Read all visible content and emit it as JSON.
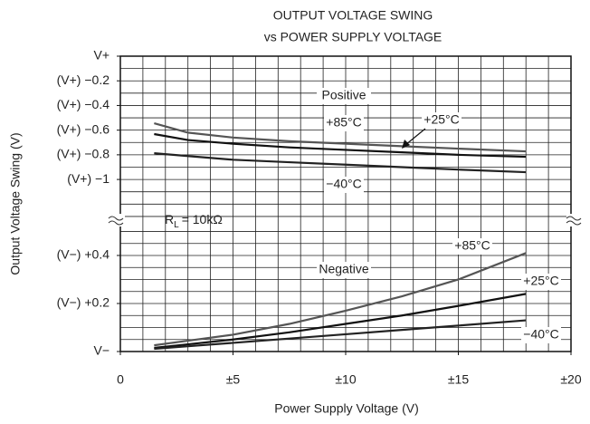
{
  "chart_data": [
    {
      "type": "line",
      "title": "OUTPUT VOLTAGE SWING",
      "subtitle": "vs POWER SUPPLY VOLTAGE",
      "ylabel": "Output Voltage Swing (V)",
      "annotations": [
        "Positive",
        "R",
        "L",
        "= 10kΩ"
      ],
      "x": [
        1.5,
        3,
        5,
        7.5,
        10,
        12.5,
        15,
        18
      ],
      "xlim": [
        0,
        20
      ],
      "ylim": [
        -1.33,
        0
      ],
      "yticks": [
        {
          "value": 0,
          "label": "V+"
        },
        {
          "value": -0.2,
          "label": "(V+) −0.2"
        },
        {
          "value": -0.4,
          "label": "(V+) −0.4"
        },
        {
          "value": -0.6,
          "label": "(V+) −0.6"
        },
        {
          "value": -0.8,
          "label": "(V+) −0.8"
        },
        {
          "value": -1,
          "label": "(V+) −1"
        }
      ],
      "xgrid": [
        1,
        2,
        3,
        4,
        5,
        6,
        7,
        8,
        9,
        10,
        11,
        12,
        13,
        14,
        15,
        16,
        17,
        18,
        19
      ],
      "ygrid": [
        -0.1,
        -0.2,
        -0.3,
        -0.4,
        -0.5,
        -0.6,
        -0.7,
        -0.8,
        -0.9,
        -1,
        -1.1,
        -1.2,
        -1.3
      ],
      "grid": true,
      "series": [
        {
          "name": "+85°C",
          "color": "#555555",
          "values": [
            -0.544,
            -0.62,
            -0.66,
            -0.69,
            -0.71,
            -0.73,
            -0.75,
            -0.772
          ]
        },
        {
          "name": "+25°C",
          "color": "#111111",
          "values": [
            -0.632,
            -0.68,
            -0.71,
            -0.74,
            -0.76,
            -0.78,
            -0.8,
            -0.816
          ]
        },
        {
          "name": "−40°C",
          "color": "#222222",
          "values": [
            -0.787,
            -0.81,
            -0.84,
            -0.86,
            -0.88,
            -0.9,
            -0.92,
            -0.941
          ]
        }
      ]
    },
    {
      "type": "line",
      "xlabel": "Power Supply Voltage (V)",
      "annotations": [
        "Negative"
      ],
      "x": [
        1.5,
        3,
        5,
        7.5,
        10,
        12.5,
        15,
        18
      ],
      "xlim": [
        0,
        20
      ],
      "xticks": [
        0,
        {
          "value": 5,
          "label": "±5"
        },
        {
          "value": 10,
          "label": "±10"
        },
        {
          "value": 15,
          "label": "±15"
        },
        {
          "value": 20,
          "label": "±20"
        }
      ],
      "ylim": [
        0,
        0.547
      ],
      "yticks": [
        {
          "value": 0,
          "label": "V−"
        },
        {
          "value": 0.2,
          "label": "(V−) +0.2"
        },
        {
          "value": 0.4,
          "label": "(V−) +0.4"
        }
      ],
      "xgrid": [
        1,
        2,
        3,
        4,
        5,
        6,
        7,
        8,
        9,
        10,
        11,
        12,
        13,
        14,
        15,
        16,
        17,
        18,
        19
      ],
      "ygrid": [
        0.05,
        0.1,
        0.15,
        0.2,
        0.25,
        0.3,
        0.35,
        0.4,
        0.45,
        0.5
      ],
      "grid": true,
      "series": [
        {
          "name": "+85°C",
          "color": "#555555",
          "values": [
            0.026,
            0.045,
            0.07,
            0.115,
            0.17,
            0.23,
            0.3,
            0.41
          ]
        },
        {
          "name": "+25°C",
          "color": "#111111",
          "values": [
            0.015,
            0.03,
            0.05,
            0.08,
            0.115,
            0.15,
            0.19,
            0.24
          ]
        },
        {
          "name": "−40°C",
          "color": "#222222",
          "values": [
            0.011,
            0.022,
            0.036,
            0.054,
            0.072,
            0.09,
            0.108,
            0.13
          ]
        }
      ]
    }
  ]
}
